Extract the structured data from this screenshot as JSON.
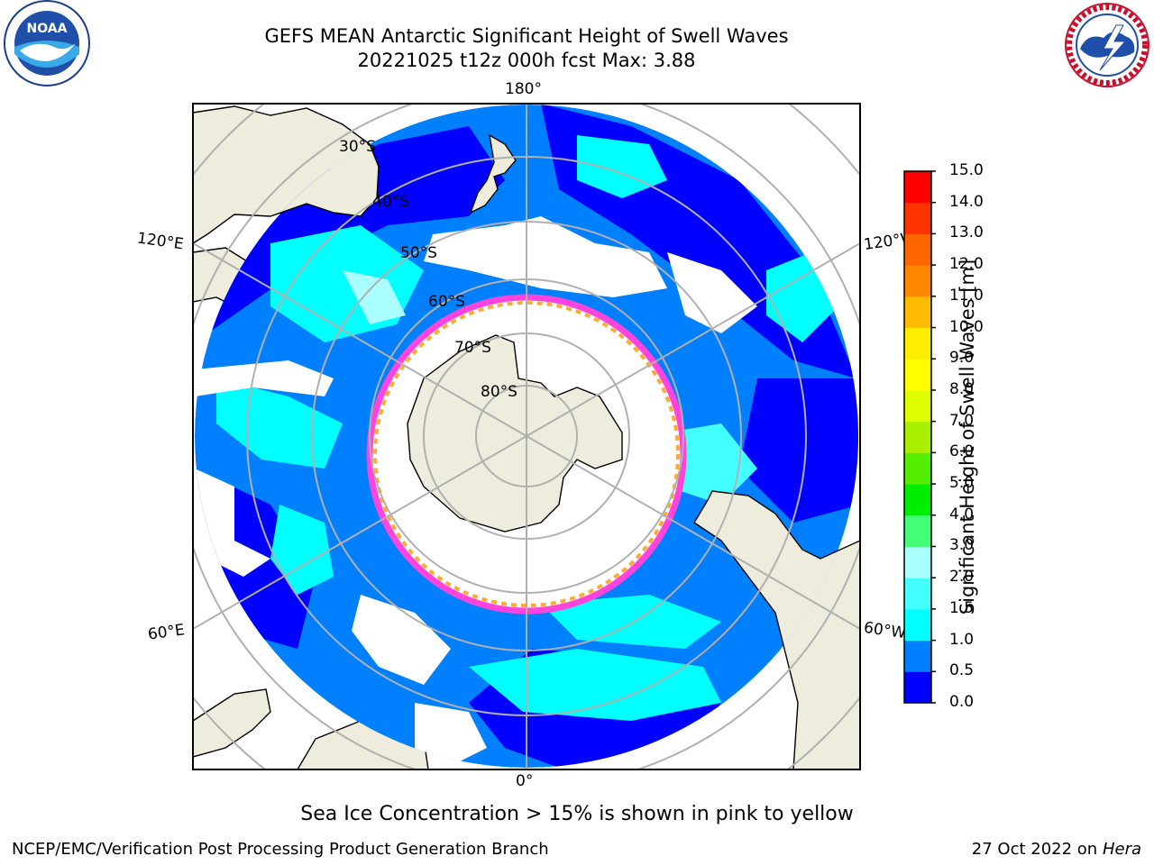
{
  "header": {
    "title_line1": "GEFS MEAN Antarctic Significant Height of Swell Waves",
    "title_line2": "20221025 t12z 000h fcst   Max: 3.88"
  },
  "logos": {
    "left": "noaa-logo",
    "right": "national-weather-service-logo"
  },
  "map": {
    "projection": "south-polar-stereographic",
    "lon_labels": {
      "top": "180°",
      "bottom": "0°",
      "upper_left": "120°E",
      "upper_right": "120°W",
      "lower_left": "60°E",
      "lower_right": "60°W"
    },
    "lat_labels": [
      "30°S",
      "40°S",
      "50°S",
      "60°S",
      "70°S",
      "80°S"
    ],
    "colors": {
      "land": "#eeecdc",
      "no_data": "#ffffff",
      "grid": "#b0b0b0",
      "ice_edge": [
        "#ff44dd",
        "#ffaa33"
      ]
    }
  },
  "colorbar": {
    "label": "Significant Height of Swell Waves [m]",
    "ticks": [
      "15.0",
      "14.0",
      "13.0",
      "12.0",
      "11.0",
      "10.0",
      "9.0",
      "8.0",
      "7.0",
      "6.0",
      "5.0",
      "4.0",
      "3.0",
      "2.0",
      "1.5",
      "1.0",
      "0.5",
      "0.0"
    ],
    "colors": [
      "#0000ff",
      "#0080ff",
      "#00ffff",
      "#44ffff",
      "#aaffff",
      "#44ff77",
      "#00ee00",
      "#55ee00",
      "#aaee00",
      "#ddff00",
      "#ffff00",
      "#ffee00",
      "#ffbb00",
      "#ff8800",
      "#ff6600",
      "#ff3300",
      "#ff0000"
    ]
  },
  "footer": {
    "note": "Sea Ice Concentration > 15% is shown in pink to yellow",
    "left": "NCEP/EMC/Verification Post Processing Product Generation Branch",
    "right_date": "27 Oct 2022 on ",
    "right_host": "Hera"
  }
}
